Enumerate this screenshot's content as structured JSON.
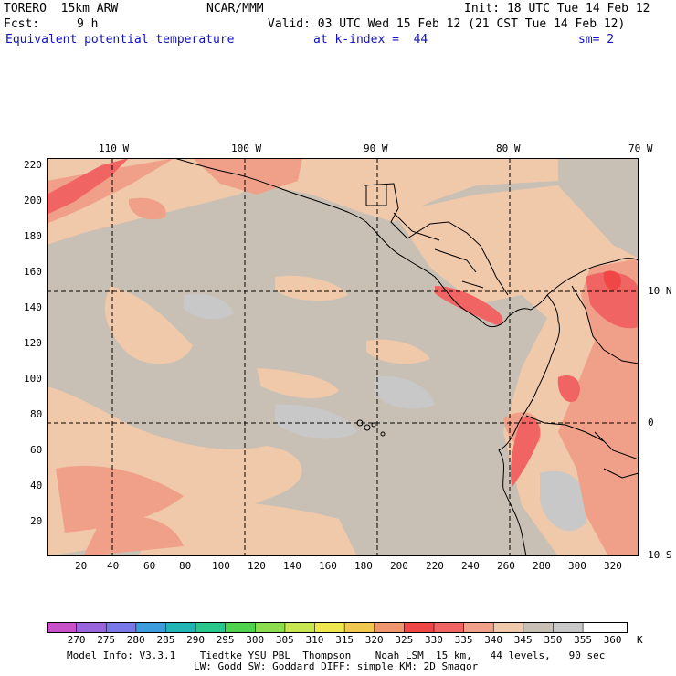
{
  "header": {
    "model": "TORERO  15km ARW",
    "org": "NCAR/MMM",
    "init": "Init: 18 UTC Tue 14 Feb 12",
    "fcst_label": "Fcst:",
    "fcst_hours": "9 h",
    "valid": "Valid: 03 UTC Wed 15 Feb 12 (21 CST Tue 14 Feb 12)",
    "field": "Equivalent potential temperature",
    "level": "at k-index =  44",
    "smooth": "sm= 2"
  },
  "map": {
    "top_lon_labels": [
      "110 W",
      "100 W",
      "90 W",
      "80 W",
      "70 W"
    ],
    "right_lat_labels": [
      "10 N",
      "0",
      "10 S"
    ],
    "left_axis_ticks": [
      "220",
      "200",
      "180",
      "160",
      "140",
      "120",
      "100",
      "80",
      "60",
      "40",
      "20"
    ],
    "bottom_axis_ticks": [
      "20",
      "40",
      "60",
      "80",
      "100",
      "120",
      "140",
      "160",
      "180",
      "200",
      "220",
      "240",
      "260",
      "280",
      "300",
      "320"
    ]
  },
  "colorbar": {
    "labels": [
      "270",
      "275",
      "280",
      "285",
      "290",
      "295",
      "300",
      "305",
      "310",
      "315",
      "320",
      "325",
      "330",
      "335",
      "340",
      "345",
      "350",
      "355",
      "360"
    ],
    "unit": "K",
    "colors": [
      "#c850c8",
      "#9a64dc",
      "#7878e8",
      "#3c9cdc",
      "#20b4b4",
      "#28c88c",
      "#50d24c",
      "#8cdc50",
      "#c8e650",
      "#f0e650",
      "#f0c850",
      "#f0966e",
      "#f04646",
      "#f06464",
      "#f0a088",
      "#f0c8aa",
      "#c8c0b4",
      "#c8c8c8",
      "#ffffff"
    ]
  },
  "footer": {
    "line1": "Model Info: V3.3.1    Tiedtke YSU PBL  Thompson    Noah LSM  15 km,   44 levels,   90 sec",
    "line2": "LW: Godd SW: Goddard DIFF: simple KM: 2D Smagor"
  }
}
